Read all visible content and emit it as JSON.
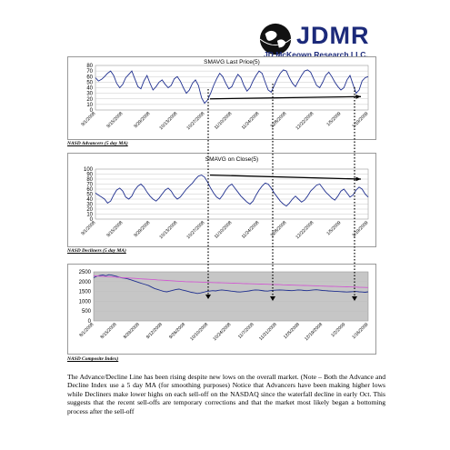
{
  "header": {
    "logo_title": "JDMR",
    "logo_subtitle": "JD McKeown Research LLC.",
    "brand_color": "#1c2a7a"
  },
  "charts": [
    {
      "caption": "NASD Advancers (5 day MA)",
      "chart_data": {
        "type": "line",
        "title": "SMAVG Last Price(5)",
        "ylim": [
          0,
          80
        ],
        "yticks": [
          "80",
          "70",
          "60",
          "50",
          "40",
          "30",
          "20",
          "10",
          "0"
        ],
        "xticks": [
          "9/1/2008",
          "9/15/2008",
          "9/29/2008",
          "10/13/2008",
          "10/27/2008",
          "11/10/2008",
          "11/24/2008",
          "12/8/2008",
          "12/22/2008",
          "1/5/2009",
          "1/19/2009"
        ],
        "series": [
          {
            "values": [
              58,
              52,
              55,
              60,
              66,
              70,
              62,
              48,
              40,
              46,
              58,
              64,
              70,
              56,
              42,
              38,
              52,
              62,
              48,
              36,
              42,
              50,
              54,
              46,
              40,
              44,
              56,
              60,
              52,
              40,
              30,
              36,
              48,
              54,
              44,
              22,
              12,
              18,
              30,
              44,
              56,
              66,
              60,
              48,
              38,
              42,
              54,
              64,
              58,
              44,
              34,
              40,
              52,
              62,
              70,
              66,
              50,
              36,
              32,
              44,
              56,
              66,
              72,
              70,
              58,
              48,
              42,
              52,
              62,
              70,
              72,
              68,
              56,
              44,
              40,
              50,
              62,
              68,
              60,
              50,
              42,
              36,
              40,
              54,
              62,
              46,
              30,
              36,
              52,
              58,
              60
            ]
          }
        ],
        "trend_arrow": {
          "from": 20,
          "to": 24
        },
        "line_color": "#1f2f8f"
      }
    },
    {
      "caption": "NASD Decliners (5 day MA)",
      "chart_data": {
        "type": "line",
        "title": "SMAVG on Close(5)",
        "ylim": [
          0,
          100
        ],
        "yticks": [
          "100",
          "90",
          "80",
          "70",
          "60",
          "50",
          "40",
          "30",
          "20",
          "10",
          "0"
        ],
        "xticks": [
          "9/1/2008",
          "9/15/2008",
          "9/29/2008",
          "10/13/2008",
          "10/27/2008",
          "11/10/2008",
          "11/24/2008",
          "12/8/2008",
          "12/22/2008",
          "1/5/2009",
          "1/19/2009"
        ],
        "series": [
          {
            "values": [
              52,
              48,
              44,
              40,
              32,
              36,
              48,
              58,
              62,
              56,
              44,
              40,
              46,
              58,
              66,
              70,
              64,
              54,
              46,
              40,
              36,
              42,
              50,
              58,
              62,
              56,
              46,
              40,
              44,
              52,
              60,
              66,
              72,
              80,
              86,
              88,
              84,
              74,
              62,
              52,
              44,
              40,
              48,
              58,
              66,
              70,
              62,
              54,
              46,
              40,
              34,
              30,
              36,
              48,
              58,
              66,
              72,
              70,
              62,
              52,
              44,
              36,
              30,
              26,
              32,
              40,
              46,
              40,
              34,
              38,
              46,
              56,
              62,
              68,
              70,
              62,
              54,
              48,
              42,
              38,
              46,
              56,
              60,
              52,
              44,
              48,
              58,
              64,
              60,
              50,
              44
            ]
          }
        ],
        "trend_arrow": {
          "from": 88,
          "to": 80
        },
        "line_color": "#1f2f8f"
      }
    },
    {
      "caption": "NASD Composite Index)",
      "chart_data": {
        "type": "line",
        "title": "",
        "ylim": [
          0,
          2500
        ],
        "yticks": [
          "2500",
          "2000",
          "1500",
          "1000",
          "500",
          "0"
        ],
        "xticks": [
          "8/1/2008",
          "8/15/2008",
          "8/29/2008",
          "9/12/2008",
          "9/26/2008",
          "10/10/2008",
          "10/24/2008",
          "11/7/2008",
          "11/21/2008",
          "12/5/2008",
          "12/19/2008",
          "1/2/2009",
          "1/16/2009"
        ],
        "series": [
          {
            "values": [
              2200,
              2280,
              2310,
              2340,
              2300,
              2350,
              2330,
              2290,
              2250,
              2200,
              2180,
              2150,
              2100,
              2050,
              2000,
              1950,
              1900,
              1850,
              1800,
              1720,
              1650,
              1600,
              1550,
              1500,
              1480,
              1520,
              1560,
              1600,
              1620,
              1580,
              1540,
              1500,
              1460,
              1430,
              1400,
              1420,
              1460,
              1500,
              1520,
              1540,
              1530,
              1560,
              1580,
              1560,
              1540,
              1520,
              1500,
              1480,
              1470,
              1490,
              1510,
              1530,
              1560,
              1580,
              1570,
              1550,
              1530,
              1520,
              1540,
              1560,
              1570,
              1580,
              1570,
              1560,
              1550,
              1540,
              1560,
              1580,
              1570,
              1550,
              1540,
              1560,
              1580,
              1590,
              1570,
              1550,
              1540,
              1530,
              1520,
              1510,
              1500,
              1490,
              1480,
              1470,
              1480,
              1490,
              1500,
              1480,
              1470,
              1460,
              1480
            ],
            "color": "#1f2f8f"
          },
          {
            "values": [
              2300,
              2290,
              2280,
              2270,
              2260,
              2250,
              2240,
              2230,
              2220,
              2210,
              2200,
              2190,
              2180,
              2170,
              2160,
              2150,
              2140,
              2130,
              2120,
              2110,
              2100,
              2090,
              2080,
              2070,
              2060,
              2050,
              2040,
              2030,
              2020,
              2010,
              2000,
              1995,
              1990,
              1985,
              1980,
              1975,
              1970,
              1965,
              1960,
              1955,
              1950,
              1945,
              1940,
              1935,
              1930,
              1925,
              1920,
              1915,
              1910,
              1905,
              1900,
              1895,
              1890,
              1885,
              1880,
              1875,
              1870,
              1865,
              1860,
              1855,
              1850,
              1845,
              1840,
              1835,
              1830,
              1825,
              1820,
              1815,
              1810,
              1805,
              1800,
              1795,
              1790,
              1785,
              1780,
              1775,
              1770,
              1765,
              1760,
              1755,
              1750,
              1745,
              1740,
              1735,
              1730,
              1725,
              1720,
              1715,
              1710,
              1705,
              1700
            ],
            "color": "#d15bd1"
          }
        ]
      }
    }
  ],
  "paragraph": "The Advance/Decline Line has been rising despite new lows on the overall market.  (Note – Both the Advance and Decline Index use a 5 day MA (for smoothing purposes)  Notice that Advancers have been making higher lows while Decliners make lower highs on each sell-off on the NASDAQ since the waterfall decline in early Oct.  This suggests that the recent sell-offs are temporary corrections and that the market most likely began a bottoming process after the sell-off"
}
